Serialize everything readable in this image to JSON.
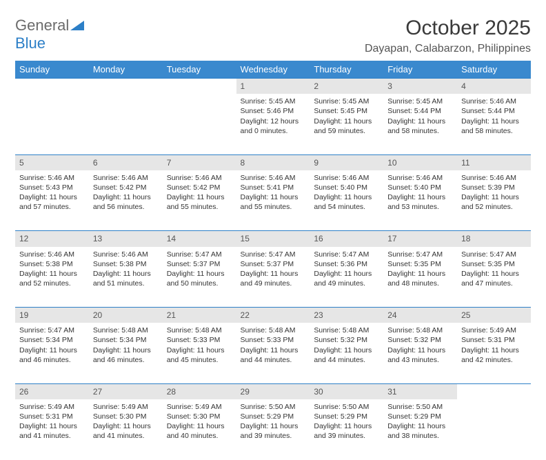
{
  "logo": {
    "text1": "General",
    "text2": "Blue"
  },
  "title": "October 2025",
  "location": "Dayapan, Calabarzon, Philippines",
  "colors": {
    "header_bg": "#3a89ce",
    "header_text": "#ffffff",
    "daynum_bg": "#e6e6e6",
    "accent": "#2c7fc7",
    "logo_gray": "#6b6b6b"
  },
  "dayHeaders": [
    "Sunday",
    "Monday",
    "Tuesday",
    "Wednesday",
    "Thursday",
    "Friday",
    "Saturday"
  ],
  "weeks": [
    [
      null,
      null,
      null,
      {
        "n": "1",
        "sr": "5:45 AM",
        "ss": "5:46 PM",
        "dl": "12 hours and 0 minutes."
      },
      {
        "n": "2",
        "sr": "5:45 AM",
        "ss": "5:45 PM",
        "dl": "11 hours and 59 minutes."
      },
      {
        "n": "3",
        "sr": "5:45 AM",
        "ss": "5:44 PM",
        "dl": "11 hours and 58 minutes."
      },
      {
        "n": "4",
        "sr": "5:46 AM",
        "ss": "5:44 PM",
        "dl": "11 hours and 58 minutes."
      }
    ],
    [
      {
        "n": "5",
        "sr": "5:46 AM",
        "ss": "5:43 PM",
        "dl": "11 hours and 57 minutes."
      },
      {
        "n": "6",
        "sr": "5:46 AM",
        "ss": "5:42 PM",
        "dl": "11 hours and 56 minutes."
      },
      {
        "n": "7",
        "sr": "5:46 AM",
        "ss": "5:42 PM",
        "dl": "11 hours and 55 minutes."
      },
      {
        "n": "8",
        "sr": "5:46 AM",
        "ss": "5:41 PM",
        "dl": "11 hours and 55 minutes."
      },
      {
        "n": "9",
        "sr": "5:46 AM",
        "ss": "5:40 PM",
        "dl": "11 hours and 54 minutes."
      },
      {
        "n": "10",
        "sr": "5:46 AM",
        "ss": "5:40 PM",
        "dl": "11 hours and 53 minutes."
      },
      {
        "n": "11",
        "sr": "5:46 AM",
        "ss": "5:39 PM",
        "dl": "11 hours and 52 minutes."
      }
    ],
    [
      {
        "n": "12",
        "sr": "5:46 AM",
        "ss": "5:38 PM",
        "dl": "11 hours and 52 minutes."
      },
      {
        "n": "13",
        "sr": "5:46 AM",
        "ss": "5:38 PM",
        "dl": "11 hours and 51 minutes."
      },
      {
        "n": "14",
        "sr": "5:47 AM",
        "ss": "5:37 PM",
        "dl": "11 hours and 50 minutes."
      },
      {
        "n": "15",
        "sr": "5:47 AM",
        "ss": "5:37 PM",
        "dl": "11 hours and 49 minutes."
      },
      {
        "n": "16",
        "sr": "5:47 AM",
        "ss": "5:36 PM",
        "dl": "11 hours and 49 minutes."
      },
      {
        "n": "17",
        "sr": "5:47 AM",
        "ss": "5:35 PM",
        "dl": "11 hours and 48 minutes."
      },
      {
        "n": "18",
        "sr": "5:47 AM",
        "ss": "5:35 PM",
        "dl": "11 hours and 47 minutes."
      }
    ],
    [
      {
        "n": "19",
        "sr": "5:47 AM",
        "ss": "5:34 PM",
        "dl": "11 hours and 46 minutes."
      },
      {
        "n": "20",
        "sr": "5:48 AM",
        "ss": "5:34 PM",
        "dl": "11 hours and 46 minutes."
      },
      {
        "n": "21",
        "sr": "5:48 AM",
        "ss": "5:33 PM",
        "dl": "11 hours and 45 minutes."
      },
      {
        "n": "22",
        "sr": "5:48 AM",
        "ss": "5:33 PM",
        "dl": "11 hours and 44 minutes."
      },
      {
        "n": "23",
        "sr": "5:48 AM",
        "ss": "5:32 PM",
        "dl": "11 hours and 44 minutes."
      },
      {
        "n": "24",
        "sr": "5:48 AM",
        "ss": "5:32 PM",
        "dl": "11 hours and 43 minutes."
      },
      {
        "n": "25",
        "sr": "5:49 AM",
        "ss": "5:31 PM",
        "dl": "11 hours and 42 minutes."
      }
    ],
    [
      {
        "n": "26",
        "sr": "5:49 AM",
        "ss": "5:31 PM",
        "dl": "11 hours and 41 minutes."
      },
      {
        "n": "27",
        "sr": "5:49 AM",
        "ss": "5:30 PM",
        "dl": "11 hours and 41 minutes."
      },
      {
        "n": "28",
        "sr": "5:49 AM",
        "ss": "5:30 PM",
        "dl": "11 hours and 40 minutes."
      },
      {
        "n": "29",
        "sr": "5:50 AM",
        "ss": "5:29 PM",
        "dl": "11 hours and 39 minutes."
      },
      {
        "n": "30",
        "sr": "5:50 AM",
        "ss": "5:29 PM",
        "dl": "11 hours and 39 minutes."
      },
      {
        "n": "31",
        "sr": "5:50 AM",
        "ss": "5:29 PM",
        "dl": "11 hours and 38 minutes."
      },
      null
    ]
  ],
  "labels": {
    "sunrise": "Sunrise:",
    "sunset": "Sunset:",
    "daylight": "Daylight:"
  }
}
